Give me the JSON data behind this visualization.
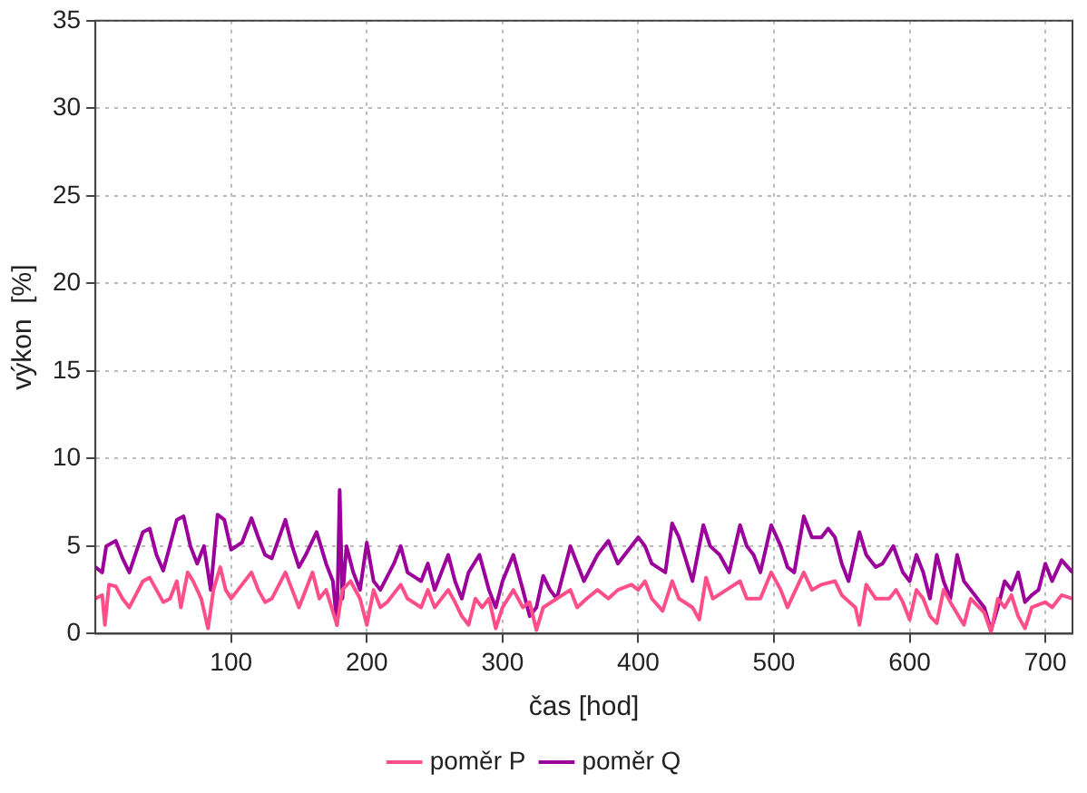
{
  "chart_data": {
    "type": "line",
    "xlabel": "čas [hod]",
    "ylabel": "výkon  [%]",
    "xlim": [
      0,
      720
    ],
    "xticks": [
      100,
      200,
      300,
      400,
      500,
      600,
      700
    ],
    "ylim": [
      0,
      35
    ],
    "yticks": [
      0,
      5,
      10,
      15,
      20,
      25,
      30,
      35
    ],
    "grid": true,
    "legend": "bottom",
    "marker": "none",
    "line_style": "solid",
    "series": [
      {
        "name": "poměr P",
        "color": "#ff4f8b",
        "x": [
          0,
          5,
          7,
          10,
          15,
          20,
          25,
          35,
          40,
          45,
          50,
          55,
          60,
          63,
          68,
          72,
          78,
          83,
          87,
          92,
          96,
          100,
          108,
          115,
          120,
          125,
          130,
          140,
          145,
          150,
          160,
          165,
          170,
          178,
          182,
          188,
          195,
          200,
          205,
          210,
          215,
          225,
          230,
          240,
          245,
          250,
          260,
          265,
          270,
          275,
          280,
          285,
          290,
          295,
          300,
          308,
          315,
          320,
          325,
          330,
          340,
          350,
          355,
          362,
          370,
          378,
          385,
          395,
          400,
          405,
          410,
          418,
          425,
          430,
          440,
          445,
          450,
          455,
          465,
          475,
          480,
          490,
          498,
          505,
          510,
          522,
          528,
          535,
          545,
          550,
          560,
          563,
          568,
          575,
          585,
          590,
          595,
          600,
          605,
          610,
          615,
          620,
          625,
          630,
          640,
          645,
          655,
          660,
          665,
          670,
          675,
          680,
          685,
          690,
          700,
          705,
          712,
          720
        ],
        "values": [
          2.0,
          2.2,
          0.5,
          2.8,
          2.7,
          2.0,
          1.5,
          3.0,
          3.2,
          2.5,
          1.8,
          2.0,
          3.0,
          1.5,
          3.5,
          3.0,
          2.0,
          0.3,
          2.5,
          3.8,
          2.5,
          2.0,
          2.8,
          3.5,
          2.5,
          1.8,
          2.0,
          3.5,
          2.5,
          1.5,
          3.5,
          2.0,
          2.5,
          0.5,
          2.5,
          3.0,
          2.0,
          0.5,
          2.5,
          1.5,
          1.8,
          2.8,
          2.0,
          1.5,
          2.5,
          1.5,
          2.5,
          1.8,
          1.0,
          0.5,
          2.0,
          1.5,
          2.0,
          0.3,
          1.5,
          2.5,
          1.5,
          1.8,
          0.2,
          1.5,
          2.0,
          2.5,
          1.5,
          2.0,
          2.5,
          2.0,
          2.5,
          2.8,
          2.5,
          3.0,
          2.0,
          1.3,
          3.0,
          2.0,
          1.5,
          0.8,
          3.2,
          2.0,
          2.5,
          3.0,
          2.0,
          2.0,
          3.5,
          2.5,
          1.5,
          3.5,
          2.5,
          2.8,
          3.0,
          2.2,
          1.5,
          0.5,
          2.8,
          2.0,
          2.0,
          2.5,
          1.8,
          0.8,
          2.5,
          2.0,
          1.0,
          0.6,
          2.5,
          1.8,
          0.5,
          2.0,
          1.2,
          0.1,
          2.0,
          1.5,
          2.2,
          1.0,
          0.3,
          1.5,
          1.8,
          1.5,
          2.2,
          2.0
        ]
      },
      {
        "name": "poměr Q",
        "color": "#9b009b",
        "x": [
          0,
          5,
          8,
          15,
          20,
          25,
          35,
          40,
          45,
          50,
          60,
          65,
          70,
          75,
          80,
          85,
          90,
          95,
          100,
          108,
          115,
          120,
          125,
          130,
          140,
          145,
          150,
          155,
          163,
          170,
          175,
          178,
          180,
          182,
          185,
          190,
          195,
          200,
          205,
          210,
          220,
          225,
          230,
          240,
          245,
          250,
          260,
          265,
          270,
          275,
          283,
          290,
          295,
          300,
          308,
          315,
          320,
          325,
          330,
          335,
          340,
          350,
          355,
          360,
          370,
          378,
          385,
          393,
          400,
          405,
          410,
          420,
          425,
          430,
          440,
          448,
          453,
          460,
          467,
          475,
          480,
          485,
          490,
          498,
          505,
          510,
          515,
          522,
          528,
          535,
          540,
          545,
          550,
          555,
          563,
          568,
          575,
          580,
          588,
          595,
          600,
          605,
          610,
          615,
          620,
          625,
          630,
          635,
          640,
          645,
          655,
          660,
          665,
          670,
          675,
          680,
          685,
          690,
          695,
          700,
          705,
          712,
          720
        ],
        "values": [
          3.8,
          3.5,
          5.0,
          5.3,
          4.3,
          3.5,
          5.8,
          6.0,
          4.5,
          3.6,
          6.5,
          6.7,
          5.0,
          4.0,
          5.0,
          2.5,
          6.8,
          6.5,
          4.8,
          5.2,
          6.6,
          5.5,
          4.5,
          4.3,
          6.5,
          5.0,
          3.8,
          4.5,
          5.8,
          4.0,
          3.0,
          0.5,
          8.2,
          2.0,
          5.0,
          3.5,
          2.5,
          5.2,
          3.0,
          2.5,
          4.0,
          5.0,
          3.5,
          3.0,
          4.0,
          2.5,
          4.5,
          3.0,
          2.0,
          3.5,
          4.5,
          2.5,
          1.5,
          3.0,
          4.5,
          2.5,
          1.0,
          1.5,
          3.3,
          2.5,
          2.0,
          5.0,
          4.0,
          3.0,
          4.5,
          5.3,
          4.0,
          4.8,
          5.5,
          5.0,
          4.0,
          3.5,
          6.3,
          5.5,
          3.0,
          6.2,
          5.0,
          4.5,
          3.5,
          6.2,
          5.0,
          4.5,
          3.5,
          6.2,
          5.0,
          3.8,
          3.5,
          6.7,
          5.5,
          5.5,
          6.0,
          5.5,
          4.0,
          3.0,
          5.8,
          4.5,
          3.8,
          4.0,
          5.0,
          3.5,
          3.0,
          4.5,
          3.5,
          2.0,
          4.5,
          3.0,
          2.0,
          4.5,
          3.0,
          2.5,
          1.5,
          0.2,
          1.5,
          3.0,
          2.5,
          3.5,
          1.8,
          2.2,
          2.5,
          4.0,
          3.0,
          4.2,
          3.5
        ]
      }
    ]
  }
}
